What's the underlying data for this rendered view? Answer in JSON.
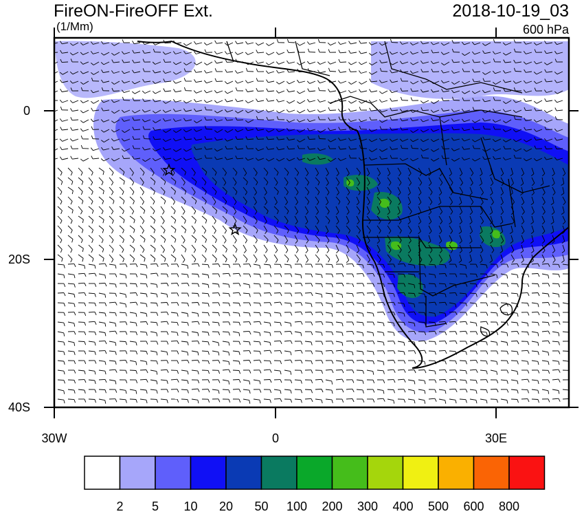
{
  "title": "FireON-FireOFF Ext.",
  "units": "(1/Mm)",
  "datetime": "2018-10-19_03",
  "level": "600 hPa",
  "lon_ticks": [
    "30W",
    "0",
    "30E"
  ],
  "lat_ticks": [
    "0",
    "20S",
    "40S"
  ],
  "colorbar": {
    "colors": [
      "#ffffff",
      "#a6a6fa",
      "#5f5ffb",
      "#1010f5",
      "#0a3ab4",
      "#0a7a60",
      "#0aa82a",
      "#45bd1b",
      "#a5d60c",
      "#f0f012",
      "#fab000",
      "#fa6405",
      "#fa1212"
    ],
    "labels": [
      "2",
      "5",
      "10",
      "20",
      "50",
      "100",
      "200",
      "300",
      "400",
      "500",
      "600",
      "800"
    ]
  },
  "markers": [
    {
      "name": "star-marker-1",
      "lon": -14.5,
      "lat": -8
    },
    {
      "name": "star-marker-2",
      "lon": -5.5,
      "lat": -16
    }
  ]
}
